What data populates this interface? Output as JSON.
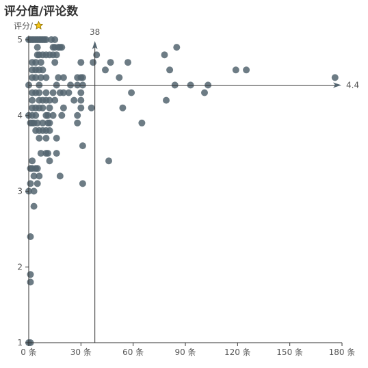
{
  "chart_data": {
    "type": "scatter",
    "title": "评分值/评论数",
    "ylabel": "评分/",
    "ylabel_icon": "star-icon",
    "xlim": [
      0,
      180
    ],
    "ylim": [
      1,
      5
    ],
    "x_ticks": [
      0,
      30,
      60,
      90,
      120,
      150,
      180
    ],
    "x_tick_labels": [
      "0 条",
      "30 条",
      "60 条",
      "90 条",
      "120 条",
      "150 条",
      "180 条"
    ],
    "y_ticks": [
      1,
      2,
      3,
      4,
      5
    ],
    "y_tick_labels": [
      "1",
      "2",
      "3",
      "4",
      "5"
    ],
    "reference_lines": {
      "x_value": 38,
      "x_label": "38",
      "y_value": 4.4,
      "y_label": "4.4"
    },
    "colors": {
      "point": "#546570",
      "axis": "#333333"
    },
    "points": [
      [
        0,
        1
      ],
      [
        1,
        1
      ],
      [
        1,
        1.8
      ],
      [
        1,
        1.9
      ],
      [
        1,
        2.4
      ],
      [
        3,
        2.8
      ],
      [
        0,
        3
      ],
      [
        1,
        3.1
      ],
      [
        3,
        3
      ],
      [
        5,
        3.1
      ],
      [
        1,
        3.3
      ],
      [
        2,
        3.3
      ],
      [
        4,
        3.3
      ],
      [
        5,
        3.3
      ],
      [
        2,
        3.4
      ],
      [
        6,
        3.2
      ],
      [
        3,
        3.2
      ],
      [
        18,
        3.2
      ],
      [
        31,
        3.1
      ],
      [
        7,
        3.5
      ],
      [
        10,
        3.5
      ],
      [
        11,
        3.5
      ],
      [
        12,
        3.4
      ],
      [
        16,
        3.5
      ],
      [
        31,
        3.6
      ],
      [
        46,
        3.4
      ],
      [
        0,
        4
      ],
      [
        1,
        3.9
      ],
      [
        2,
        3.9
      ],
      [
        3,
        3.9
      ],
      [
        5,
        3.9
      ],
      [
        8,
        3.9
      ],
      [
        11,
        3.9
      ],
      [
        12,
        3.9
      ],
      [
        28,
        3.9
      ],
      [
        4,
        3.8
      ],
      [
        6,
        3.8
      ],
      [
        8,
        3.8
      ],
      [
        10,
        3.8
      ],
      [
        12,
        3.8
      ],
      [
        6,
        3.7
      ],
      [
        16,
        3.7
      ],
      [
        10,
        3.7
      ],
      [
        65,
        3.9
      ],
      [
        2,
        4.1
      ],
      [
        4,
        4.1
      ],
      [
        6,
        4.1
      ],
      [
        8,
        4.1
      ],
      [
        12,
        4.1
      ],
      [
        20,
        4.1
      ],
      [
        30,
        4.1
      ],
      [
        36,
        4.1
      ],
      [
        54,
        4.1
      ],
      [
        2,
        4
      ],
      [
        4,
        4
      ],
      [
        10,
        4
      ],
      [
        11,
        4
      ],
      [
        14,
        4
      ],
      [
        19,
        4
      ],
      [
        28,
        4
      ],
      [
        2,
        4.2
      ],
      [
        6,
        4.2
      ],
      [
        8,
        4.2
      ],
      [
        10,
        4.2
      ],
      [
        12,
        4.2
      ],
      [
        15,
        4.2
      ],
      [
        26,
        4.2
      ],
      [
        30,
        4.2
      ],
      [
        79,
        4.2
      ],
      [
        0,
        4.4
      ],
      [
        2,
        4.3
      ],
      [
        4,
        4.3
      ],
      [
        6,
        4.3
      ],
      [
        10,
        4.3
      ],
      [
        14,
        4.3
      ],
      [
        18,
        4.3
      ],
      [
        20,
        4.3
      ],
      [
        23,
        4.3
      ],
      [
        30,
        4.3
      ],
      [
        59,
        4.3
      ],
      [
        101,
        4.3
      ],
      [
        6,
        4.4
      ],
      [
        16,
        4.4
      ],
      [
        24,
        4.4
      ],
      [
        28,
        4.4
      ],
      [
        31,
        4.4
      ],
      [
        84,
        4.4
      ],
      [
        93,
        4.4
      ],
      [
        103,
        4.4
      ],
      [
        176,
        4.5
      ],
      [
        2,
        4.5
      ],
      [
        4,
        4.5
      ],
      [
        7,
        4.5
      ],
      [
        10,
        4.5
      ],
      [
        17,
        4.5
      ],
      [
        20,
        4.5
      ],
      [
        28,
        4.5
      ],
      [
        30,
        4.5
      ],
      [
        31,
        4.5
      ],
      [
        52,
        4.5
      ],
      [
        2,
        4.6
      ],
      [
        4,
        4.6
      ],
      [
        6,
        4.6
      ],
      [
        8,
        4.6
      ],
      [
        44,
        4.6
      ],
      [
        81,
        4.6
      ],
      [
        119,
        4.6
      ],
      [
        125,
        4.6
      ],
      [
        2,
        4.7
      ],
      [
        4,
        4.7
      ],
      [
        7,
        4.7
      ],
      [
        15,
        4.7
      ],
      [
        30,
        4.7
      ],
      [
        37,
        4.7
      ],
      [
        47,
        4.7
      ],
      [
        57,
        4.7
      ],
      [
        5,
        4.8
      ],
      [
        6,
        4.8
      ],
      [
        8,
        4.8
      ],
      [
        10,
        4.8
      ],
      [
        12,
        4.8
      ],
      [
        14,
        4.8
      ],
      [
        16,
        4.8
      ],
      [
        39,
        4.8
      ],
      [
        78,
        4.8
      ],
      [
        5,
        4.9
      ],
      [
        14,
        4.9
      ],
      [
        15,
        4.9
      ],
      [
        17,
        4.9
      ],
      [
        18,
        4.9
      ],
      [
        19,
        4.9
      ],
      [
        85,
        4.9
      ],
      [
        0,
        5
      ],
      [
        1,
        5
      ],
      [
        2,
        5
      ],
      [
        3,
        5
      ],
      [
        4,
        5
      ],
      [
        5,
        5
      ],
      [
        6,
        5
      ],
      [
        7,
        5
      ],
      [
        8,
        5
      ],
      [
        9,
        5
      ],
      [
        10,
        5
      ],
      [
        13,
        5
      ],
      [
        15,
        5
      ]
    ]
  }
}
